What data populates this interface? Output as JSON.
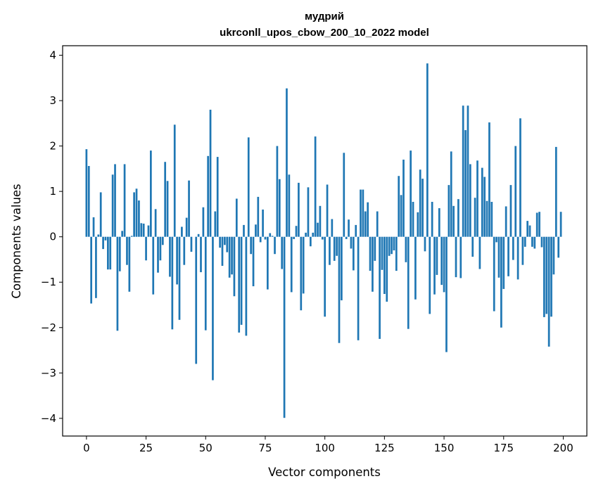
{
  "chart_data": {
    "type": "bar",
    "title": "мудрий",
    "subtitle": "ukrconll_upos_cbow_200_10_2022 model",
    "xlabel": "Vector components",
    "ylabel": "Components values",
    "xlim": [
      -10,
      209.9
    ],
    "ylim": [
      -4.39,
      4.21
    ],
    "xticks": [
      0,
      25,
      50,
      75,
      100,
      125,
      150,
      175,
      200
    ],
    "xtick_labels": [
      "0",
      "25",
      "50",
      "75",
      "100",
      "125",
      "150",
      "175",
      "200"
    ],
    "yticks": [
      -4,
      -3,
      -2,
      -1,
      0,
      1,
      2,
      3,
      4
    ],
    "ytick_labels": [
      "−4",
      "−3",
      "−2",
      "−1",
      "0",
      "1",
      "2",
      "3",
      "4"
    ],
    "bar_color": "#1f77b4",
    "grid": false,
    "x": [
      0,
      1,
      2,
      3,
      4,
      5,
      6,
      7,
      8,
      9,
      10,
      11,
      12,
      13,
      14,
      15,
      16,
      17,
      18,
      19,
      20,
      21,
      22,
      23,
      24,
      25,
      26,
      27,
      28,
      29,
      30,
      31,
      32,
      33,
      34,
      35,
      36,
      37,
      38,
      39,
      40,
      41,
      42,
      43,
      44,
      45,
      46,
      47,
      48,
      49,
      50,
      51,
      52,
      53,
      54,
      55,
      56,
      57,
      58,
      59,
      60,
      61,
      62,
      63,
      64,
      65,
      66,
      67,
      68,
      69,
      70,
      71,
      72,
      73,
      74,
      75,
      76,
      77,
      78,
      79,
      80,
      81,
      82,
      83,
      84,
      85,
      86,
      87,
      88,
      89,
      90,
      91,
      92,
      93,
      94,
      95,
      96,
      97,
      98,
      99,
      100,
      101,
      102,
      103,
      104,
      105,
      106,
      107,
      108,
      109,
      110,
      111,
      112,
      113,
      114,
      115,
      116,
      117,
      118,
      119,
      120,
      121,
      122,
      123,
      124,
      125,
      126,
      127,
      128,
      129,
      130,
      131,
      132,
      133,
      134,
      135,
      136,
      137,
      138,
      139,
      140,
      141,
      142,
      143,
      144,
      145,
      146,
      147,
      148,
      149,
      150,
      151,
      152,
      153,
      154,
      155,
      156,
      157,
      158,
      159,
      160,
      161,
      162,
      163,
      164,
      165,
      166,
      167,
      168,
      169,
      170,
      171,
      172,
      173,
      174,
      175,
      176,
      177,
      178,
      179,
      180,
      181,
      182,
      183,
      184,
      185,
      186,
      187,
      188,
      189,
      190,
      191,
      192,
      193,
      194,
      195,
      196,
      197,
      198,
      199
    ],
    "values": [
      1.93,
      1.56,
      -1.47,
      0.43,
      -1.35,
      0.05,
      0.98,
      -0.27,
      -0.08,
      -0.72,
      -0.72,
      1.37,
      1.6,
      -2.07,
      -0.76,
      0.13,
      1.6,
      -0.62,
      -1.21,
      0.02,
      0.98,
      1.06,
      0.8,
      0.3,
      0.29,
      -0.52,
      0.25,
      1.9,
      -1.27,
      0.61,
      -0.79,
      -0.52,
      -0.18,
      1.65,
      1.23,
      -0.88,
      -2.04,
      2.47,
      -1.05,
      -1.83,
      0.22,
      -0.62,
      0.42,
      1.24,
      -0.33,
      0.0,
      -2.8,
      0.06,
      -0.78,
      0.65,
      -2.06,
      1.78,
      2.8,
      -3.16,
      0.56,
      1.76,
      -0.24,
      -0.64,
      -0.18,
      -0.34,
      -0.9,
      -0.83,
      -1.31,
      0.84,
      -2.11,
      -1.94,
      0.26,
      -2.18,
      2.19,
      -0.38,
      -1.09,
      0.27,
      0.88,
      -0.12,
      0.6,
      -0.06,
      -1.16,
      0.08,
      0.02,
      -0.38,
      2.0,
      1.27,
      -0.71,
      -3.99,
      3.27,
      1.37,
      -1.22,
      -0.05,
      0.24,
      1.19,
      -1.62,
      -1.25,
      0.09,
      1.09,
      -0.21,
      0.09,
      2.21,
      0.31,
      0.68,
      -0.06,
      -1.76,
      1.15,
      -0.62,
      0.39,
      -0.53,
      -0.42,
      -2.34,
      -1.4,
      1.85,
      -0.05,
      0.38,
      -0.26,
      -0.74,
      0.26,
      -2.28,
      1.04,
      1.04,
      0.56,
      0.76,
      -0.75,
      -1.21,
      -0.53,
      0.56,
      -2.25,
      -0.73,
      -1.26,
      -1.43,
      -0.42,
      -0.38,
      -0.3,
      -0.75,
      1.34,
      0.92,
      1.7,
      -0.56,
      -2.03,
      1.9,
      0.77,
      -1.38,
      0.54,
      1.48,
      1.28,
      -0.32,
      3.82,
      -1.7,
      0.77,
      -1.27,
      -0.84,
      0.63,
      -1.06,
      -1.22,
      -2.54,
      1.14,
      1.88,
      0.68,
      -0.89,
      0.83,
      -0.91,
      2.89,
      2.35,
      2.89,
      1.6,
      -0.44,
      0.86,
      1.68,
      -0.71,
      1.52,
      1.32,
      0.79,
      2.52,
      0.77,
      -1.64,
      -0.12,
      -0.9,
      -2.0,
      -1.15,
      0.67,
      -0.87,
      1.14,
      -0.51,
      2.0,
      -0.94,
      2.61,
      -0.62,
      -0.22,
      0.35,
      0.25,
      -0.22,
      -0.26,
      0.53,
      0.55,
      -0.23,
      -1.77,
      -1.7,
      -2.42,
      -1.76,
      -0.83,
      1.98,
      -0.46,
      0.55
    ]
  }
}
